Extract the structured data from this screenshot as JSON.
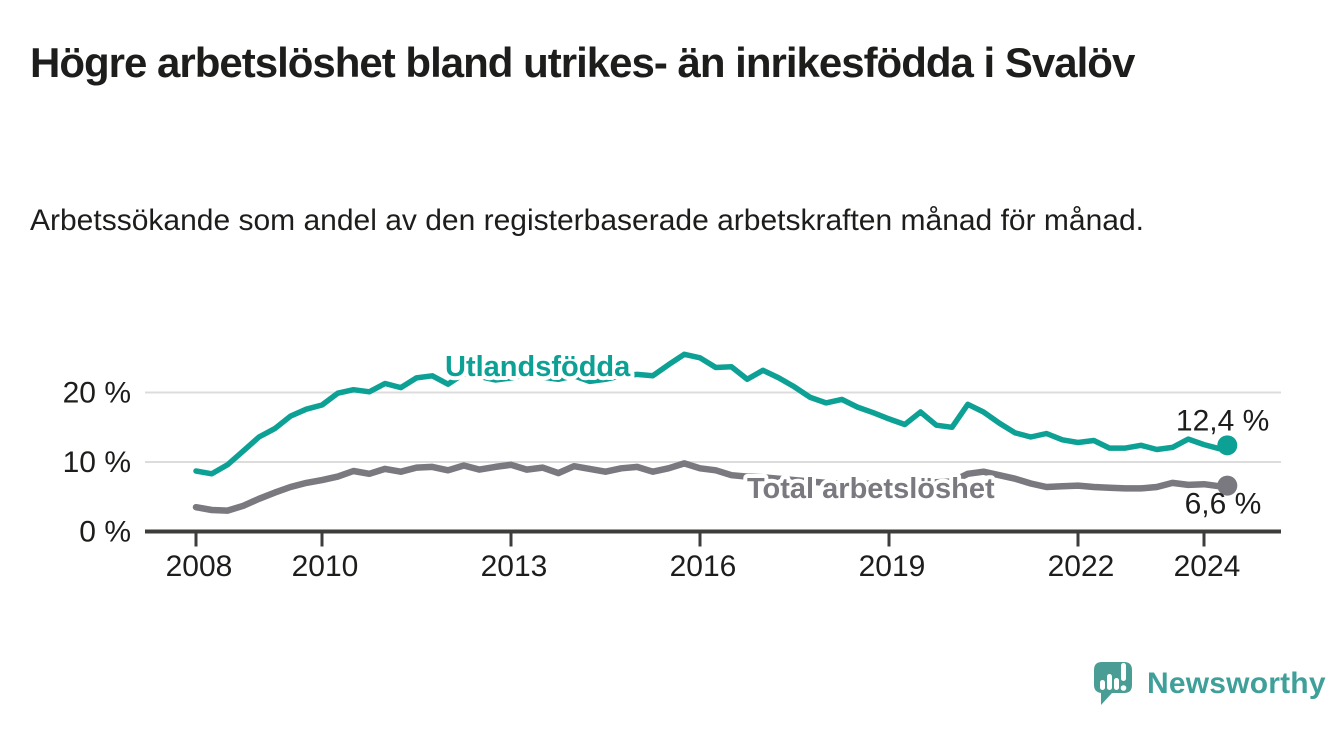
{
  "header": {
    "title": "Högre arbetslöshet bland utrikes- än inrikesfödda i Svalöv",
    "subtitle": "Arbetssökande som andel av den registerbaserade arbetskraften månad för månad."
  },
  "chart_data": {
    "type": "line",
    "title": "Högre arbetslöshet bland utrikes- än inrikesfödda i Svalöv",
    "subtitle": "Arbetssökande som andel av den registerbaserade arbetskraften månad för månad.",
    "x_unit": "decimal_year",
    "xlim": [
      2008,
      2024.6
    ],
    "ylim": [
      0,
      27
    ],
    "grid": "horizontal",
    "legend_position": "inline-labels",
    "x_ticks": [
      {
        "value": 2008,
        "label": "2008"
      },
      {
        "value": 2010,
        "label": "2010"
      },
      {
        "value": 2013,
        "label": "2013"
      },
      {
        "value": 2016,
        "label": "2016"
      },
      {
        "value": 2019,
        "label": "2019"
      },
      {
        "value": 2022,
        "label": "2022"
      },
      {
        "value": 2024,
        "label": "2024"
      }
    ],
    "y_ticks": [
      {
        "value": 0,
        "label": "0 %"
      },
      {
        "value": 10,
        "label": "10 %"
      },
      {
        "value": 20,
        "label": "20 %"
      }
    ],
    "colors": {
      "axis": "#3d3d3c",
      "grid": "#dcdcdc",
      "text": "#1d1d1b",
      "label_halo": "#ffffff"
    },
    "series": [
      {
        "name": "Utlandsfödda",
        "color": "#0da196",
        "end_value": 12.4,
        "end_label": "12,4 %",
        "points": [
          [
            2008.0,
            8.7
          ],
          [
            2008.25,
            8.3
          ],
          [
            2008.5,
            9.6
          ],
          [
            2008.75,
            11.6
          ],
          [
            2009.0,
            13.6
          ],
          [
            2009.25,
            14.8
          ],
          [
            2009.5,
            16.6
          ],
          [
            2009.75,
            17.6
          ],
          [
            2010.0,
            18.2
          ],
          [
            2010.25,
            19.9
          ],
          [
            2010.5,
            20.4
          ],
          [
            2010.75,
            20.1
          ],
          [
            2011.0,
            21.3
          ],
          [
            2011.25,
            20.7
          ],
          [
            2011.5,
            22.1
          ],
          [
            2011.75,
            22.4
          ],
          [
            2012.0,
            21.2
          ],
          [
            2012.25,
            22.7
          ],
          [
            2012.5,
            22.3
          ],
          [
            2012.75,
            21.8
          ],
          [
            2013.0,
            22.1
          ],
          [
            2013.25,
            22.6
          ],
          [
            2013.5,
            22.2
          ],
          [
            2013.75,
            21.9
          ],
          [
            2014.0,
            22.4
          ],
          [
            2014.25,
            21.6
          ],
          [
            2014.5,
            21.9
          ],
          [
            2014.75,
            22.4
          ],
          [
            2015.0,
            22.6
          ],
          [
            2015.25,
            22.4
          ],
          [
            2015.5,
            24.0
          ],
          [
            2015.75,
            25.5
          ],
          [
            2016.0,
            25.0
          ],
          [
            2016.25,
            23.6
          ],
          [
            2016.5,
            23.7
          ],
          [
            2016.75,
            21.9
          ],
          [
            2017.0,
            23.2
          ],
          [
            2017.25,
            22.1
          ],
          [
            2017.5,
            20.8
          ],
          [
            2017.75,
            19.3
          ],
          [
            2018.0,
            18.5
          ],
          [
            2018.25,
            19.0
          ],
          [
            2018.5,
            17.9
          ],
          [
            2018.75,
            17.1
          ],
          [
            2019.0,
            16.2
          ],
          [
            2019.25,
            15.4
          ],
          [
            2019.5,
            17.2
          ],
          [
            2019.75,
            15.3
          ],
          [
            2020.0,
            15.0
          ],
          [
            2020.25,
            18.3
          ],
          [
            2020.5,
            17.2
          ],
          [
            2020.75,
            15.6
          ],
          [
            2021.0,
            14.2
          ],
          [
            2021.25,
            13.6
          ],
          [
            2021.5,
            14.1
          ],
          [
            2021.75,
            13.2
          ],
          [
            2022.0,
            12.8
          ],
          [
            2022.25,
            13.1
          ],
          [
            2022.5,
            12.0
          ],
          [
            2022.75,
            12.0
          ],
          [
            2023.0,
            12.4
          ],
          [
            2023.25,
            11.8
          ],
          [
            2023.5,
            12.1
          ],
          [
            2023.75,
            13.3
          ],
          [
            2024.0,
            12.5
          ],
          [
            2024.25,
            11.9
          ],
          [
            2024.37,
            12.4
          ]
        ]
      },
      {
        "name": "Total arbetslöshet",
        "color": "#7a797f",
        "end_value": 6.6,
        "end_label": "6,6 %",
        "points": [
          [
            2008.0,
            3.5
          ],
          [
            2008.25,
            3.1
          ],
          [
            2008.5,
            3.0
          ],
          [
            2008.75,
            3.7
          ],
          [
            2009.0,
            4.7
          ],
          [
            2009.25,
            5.6
          ],
          [
            2009.5,
            6.4
          ],
          [
            2009.75,
            7.0
          ],
          [
            2010.0,
            7.4
          ],
          [
            2010.25,
            7.9
          ],
          [
            2010.5,
            8.7
          ],
          [
            2010.75,
            8.3
          ],
          [
            2011.0,
            9.0
          ],
          [
            2011.25,
            8.6
          ],
          [
            2011.5,
            9.2
          ],
          [
            2011.75,
            9.3
          ],
          [
            2012.0,
            8.8
          ],
          [
            2012.25,
            9.5
          ],
          [
            2012.5,
            8.9
          ],
          [
            2012.75,
            9.3
          ],
          [
            2013.0,
            9.6
          ],
          [
            2013.25,
            8.9
          ],
          [
            2013.5,
            9.2
          ],
          [
            2013.75,
            8.4
          ],
          [
            2014.0,
            9.4
          ],
          [
            2014.25,
            9.0
          ],
          [
            2014.5,
            8.6
          ],
          [
            2014.75,
            9.1
          ],
          [
            2015.0,
            9.3
          ],
          [
            2015.25,
            8.6
          ],
          [
            2015.5,
            9.1
          ],
          [
            2015.75,
            9.8
          ],
          [
            2016.0,
            9.1
          ],
          [
            2016.25,
            8.8
          ],
          [
            2016.5,
            8.1
          ],
          [
            2016.75,
            7.9
          ],
          [
            2017.0,
            7.8
          ],
          [
            2017.25,
            7.6
          ],
          [
            2017.5,
            7.4
          ],
          [
            2017.75,
            7.2
          ],
          [
            2018.0,
            7.0
          ],
          [
            2018.25,
            6.9
          ],
          [
            2018.5,
            6.8
          ],
          [
            2018.75,
            6.9
          ],
          [
            2019.0,
            6.8
          ],
          [
            2019.25,
            6.7
          ],
          [
            2019.5,
            7.0
          ],
          [
            2019.75,
            7.1
          ],
          [
            2020.0,
            7.2
          ],
          [
            2020.25,
            8.3
          ],
          [
            2020.5,
            8.6
          ],
          [
            2020.75,
            8.1
          ],
          [
            2021.0,
            7.6
          ],
          [
            2021.25,
            6.9
          ],
          [
            2021.5,
            6.4
          ],
          [
            2021.75,
            6.5
          ],
          [
            2022.0,
            6.6
          ],
          [
            2022.25,
            6.4
          ],
          [
            2022.5,
            6.3
          ],
          [
            2022.75,
            6.2
          ],
          [
            2023.0,
            6.2
          ],
          [
            2023.25,
            6.4
          ],
          [
            2023.5,
            7.0
          ],
          [
            2023.75,
            6.7
          ],
          [
            2024.0,
            6.8
          ],
          [
            2024.25,
            6.5
          ],
          [
            2024.37,
            6.6
          ]
        ]
      }
    ]
  },
  "branding": {
    "logo_text": "Newsworthy",
    "logo_text_color": "#3fa09a",
    "logo_bubble_color": "#4a9d95",
    "logo_icon": "bar-chart-speech-bubble-icon"
  }
}
